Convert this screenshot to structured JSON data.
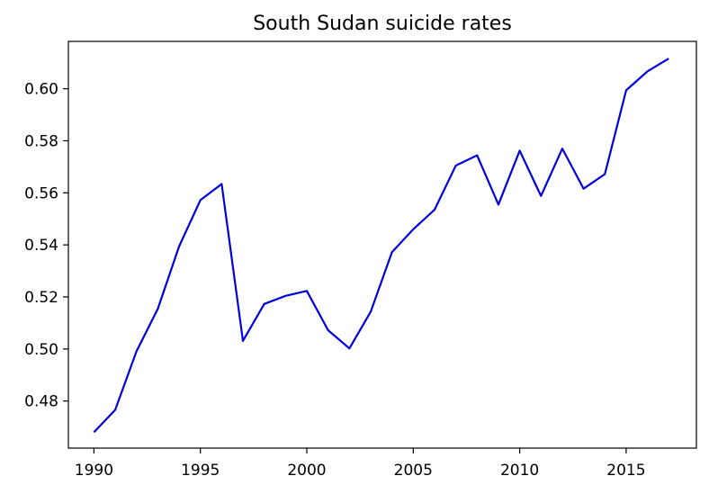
{
  "chart_data": {
    "type": "line",
    "title": "South Sudan suicide rates",
    "xlabel": "",
    "ylabel": "",
    "xlim": [
      1988.8,
      2018.3
    ],
    "ylim": [
      0.4619,
      0.6182
    ],
    "x_ticks": [
      1990,
      1995,
      2000,
      2005,
      2010,
      2015
    ],
    "y_ticks": [
      0.48,
      0.5,
      0.52,
      0.54,
      0.56,
      0.58,
      0.6
    ],
    "x_tick_labels": [
      "1990",
      "1995",
      "2000",
      "2005",
      "2010",
      "2015"
    ],
    "y_tick_labels": [
      "0.48",
      "0.50",
      "0.52",
      "0.54",
      "0.56",
      "0.58",
      "0.60"
    ],
    "grid": false,
    "series": [
      {
        "color": "#0000dd",
        "x": [
          1990,
          1991,
          1992,
          1993,
          1994,
          1995,
          1996,
          1997,
          1998,
          1999,
          2000,
          2001,
          2002,
          2003,
          2004,
          2005,
          2006,
          2007,
          2008,
          2009,
          2010,
          2011,
          2012,
          2013,
          2014,
          2015,
          2016,
          2017
        ],
        "y": [
          0.468,
          0.4766,
          0.4991,
          0.5154,
          0.5394,
          0.5572,
          0.5634,
          0.5031,
          0.5173,
          0.5204,
          0.5223,
          0.5072,
          0.5002,
          0.5143,
          0.5372,
          0.546,
          0.5535,
          0.5705,
          0.5744,
          0.5555,
          0.5762,
          0.5588,
          0.577,
          0.5616,
          0.5672,
          0.5994,
          0.6067,
          0.6116
        ]
      }
    ]
  }
}
